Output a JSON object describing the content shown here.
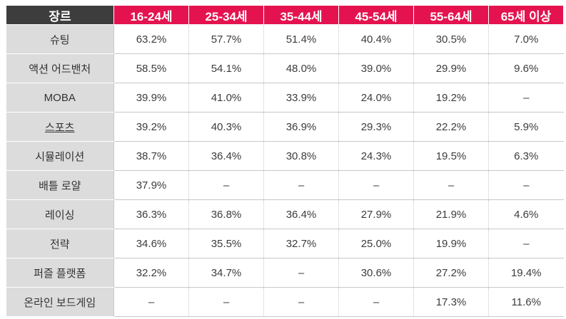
{
  "chart_data": {
    "type": "table",
    "header": {
      "genre_label": "장르",
      "age_groups": [
        "16-24세",
        "25-34세",
        "35-44세",
        "45-54세",
        "55-64세",
        "65세 이상"
      ]
    },
    "rows": [
      {
        "genre": "슈팅",
        "values": [
          "63.2%",
          "57.7%",
          "51.4%",
          "40.4%",
          "30.5%",
          "7.0%"
        ]
      },
      {
        "genre": "액션 어드밴처",
        "values": [
          "58.5%",
          "54.1%",
          "48.0%",
          "39.0%",
          "29.9%",
          "9.6%"
        ]
      },
      {
        "genre": "MOBA",
        "values": [
          "39.9%",
          "41.0%",
          "33.9%",
          "24.0%",
          "19.2%",
          "–"
        ]
      },
      {
        "genre": "스포츠",
        "values": [
          "39.2%",
          "40.3%",
          "36.9%",
          "29.3%",
          "22.2%",
          "5.9%"
        ]
      },
      {
        "genre": "시뮬레이션",
        "values": [
          "38.7%",
          "36.4%",
          "30.8%",
          "24.3%",
          "19.5%",
          "6.3%"
        ]
      },
      {
        "genre": "배틀 로얄",
        "values": [
          "37.9%",
          "–",
          "–",
          "–",
          "–",
          "–"
        ]
      },
      {
        "genre": "레이싱",
        "values": [
          "36.3%",
          "36.8%",
          "36.4%",
          "27.9%",
          "21.9%",
          "4.6%"
        ]
      },
      {
        "genre": "전략",
        "values": [
          "34.6%",
          "35.5%",
          "32.7%",
          "25.0%",
          "19.9%",
          "–"
        ]
      },
      {
        "genre": "퍼즐 플랫폼",
        "values": [
          "32.2%",
          "34.7%",
          "–",
          "30.6%",
          "27.2%",
          "19.4%"
        ]
      },
      {
        "genre": "온라인 보드게임",
        "values": [
          "–",
          "–",
          "–",
          "–",
          "17.3%",
          "11.6%"
        ]
      }
    ]
  },
  "colors": {
    "genre_header_bg": "#3d3d3d",
    "age_header_bg": "#e4134f",
    "genre_cell_bg": "#dcdcdc"
  }
}
